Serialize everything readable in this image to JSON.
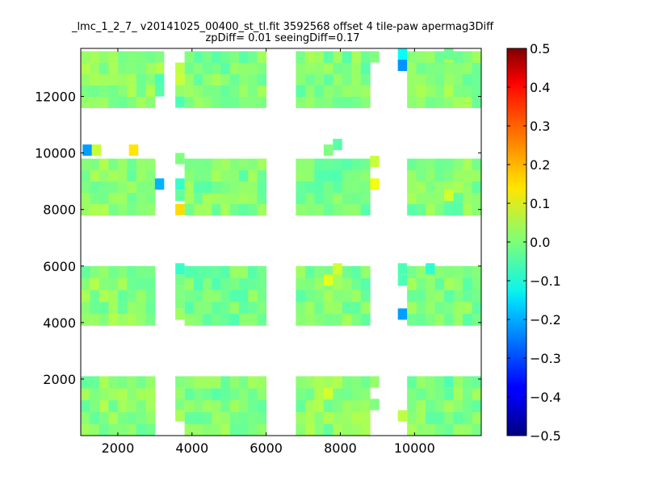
{
  "chart_data": {
    "type": "heatmap",
    "title": "_lmc_1_2_7_ v20141025_00400_st_tl.fit 3592568 offset 4 tile-paw apermag3Diff",
    "subtitle": "zpDiff= 0.01 seeingDiff=0.17",
    "xlabel": "",
    "ylabel": "",
    "xlim": [
      1000,
      11800
    ],
    "ylim": [
      0,
      13700
    ],
    "x_ticks": [
      2000,
      4000,
      6000,
      8000,
      10000
    ],
    "y_ticks": [
      2000,
      4000,
      6000,
      8000,
      10000,
      12000
    ],
    "x_tick_labels": [
      "2000",
      "4000",
      "6000",
      "8000",
      "10000"
    ],
    "y_tick_labels": [
      "2000",
      "4000",
      "6000",
      "8000",
      "10000",
      "12000"
    ],
    "colorbar": {
      "colormap": "jet",
      "vmin": -0.5,
      "vmax": 0.5,
      "ticks": [
        0.5,
        0.4,
        0.3,
        0.2,
        0.1,
        0.0,
        -0.1,
        -0.2,
        -0.3,
        -0.4,
        -0.5
      ],
      "tick_labels": [
        "0.5",
        "0.4",
        "0.3",
        "0.2",
        "0.1",
        "0.0",
        "−0.1",
        "−0.2",
        "−0.3",
        "−0.4",
        "−0.5"
      ]
    },
    "cell_size": [
      250,
      400
    ],
    "detector_blocks": [
      {
        "x": [
          1000,
          3000
        ],
        "y": [
          11600,
          13600
        ],
        "value": 0.01
      },
      {
        "x": [
          3800,
          6000
        ],
        "y": [
          11600,
          13600
        ],
        "value": 0.0
      },
      {
        "x": [
          6800,
          8800
        ],
        "y": [
          11600,
          13600
        ],
        "value": 0.0
      },
      {
        "x": [
          9800,
          11800
        ],
        "y": [
          11600,
          13600
        ],
        "value": 0.01
      },
      {
        "x": [
          1000,
          3000
        ],
        "y": [
          7800,
          9800
        ],
        "value": 0.01
      },
      {
        "x": [
          3800,
          6000
        ],
        "y": [
          7800,
          9800
        ],
        "value": 0.0
      },
      {
        "x": [
          6800,
          8800
        ],
        "y": [
          7800,
          9800
        ],
        "value": -0.01
      },
      {
        "x": [
          9800,
          11800
        ],
        "y": [
          7800,
          9800
        ],
        "value": 0.0
      },
      {
        "x": [
          1000,
          3000
        ],
        "y": [
          3900,
          6000
        ],
        "value": 0.01
      },
      {
        "x": [
          3800,
          6000
        ],
        "y": [
          3900,
          6000
        ],
        "value": -0.01
      },
      {
        "x": [
          6800,
          8800
        ],
        "y": [
          3900,
          6000
        ],
        "value": 0.0
      },
      {
        "x": [
          9800,
          11800
        ],
        "y": [
          3900,
          6000
        ],
        "value": 0.0
      },
      {
        "x": [
          1000,
          3000
        ],
        "y": [
          0,
          2100
        ],
        "value": 0.01
      },
      {
        "x": [
          3800,
          6000
        ],
        "y": [
          0,
          2100
        ],
        "value": 0.0
      },
      {
        "x": [
          6800,
          8800
        ],
        "y": [
          0,
          2100
        ],
        "value": 0.01
      },
      {
        "x": [
          9800,
          11800
        ],
        "y": [
          0,
          2100
        ],
        "value": 0.0
      }
    ],
    "extra_cells": [
      {
        "x": 1050,
        "y": 9900,
        "value": -0.22
      },
      {
        "x": 1300,
        "y": 9900,
        "value": 0.07
      },
      {
        "x": 2300,
        "y": 9900,
        "value": 0.15
      },
      {
        "x": 3000,
        "y": 13200,
        "value": 0.0
      },
      {
        "x": 3000,
        "y": 12800,
        "value": 0.05
      },
      {
        "x": 3000,
        "y": 12400,
        "value": -0.05
      },
      {
        "x": 3000,
        "y": 12000,
        "value": -0.04
      },
      {
        "x": 3000,
        "y": 8700,
        "value": -0.2
      },
      {
        "x": 3550,
        "y": 12800,
        "value": 0.06
      },
      {
        "x": 3550,
        "y": 12400,
        "value": 0.07
      },
      {
        "x": 3550,
        "y": 12000,
        "value": 0.02
      },
      {
        "x": 3550,
        "y": 11600,
        "value": -0.05
      },
      {
        "x": 3550,
        "y": 9600,
        "value": 0.0
      },
      {
        "x": 3550,
        "y": 8700,
        "value": -0.07
      },
      {
        "x": 3550,
        "y": 8300,
        "value": -0.03
      },
      {
        "x": 3550,
        "y": 7800,
        "value": 0.16
      },
      {
        "x": 3550,
        "y": 5700,
        "value": -0.07
      },
      {
        "x": 3550,
        "y": 5300,
        "value": -0.01
      },
      {
        "x": 3550,
        "y": 4900,
        "value": 0.0
      },
      {
        "x": 3550,
        "y": 4500,
        "value": 0.0
      },
      {
        "x": 3550,
        "y": 4100,
        "value": 0.03
      },
      {
        "x": 3550,
        "y": 1700,
        "value": 0.0
      },
      {
        "x": 3550,
        "y": 1300,
        "value": 0.02
      },
      {
        "x": 3550,
        "y": 900,
        "value": 0.0
      },
      {
        "x": 3550,
        "y": 500,
        "value": 0.04
      },
      {
        "x": 8800,
        "y": 9500,
        "value": 0.07
      },
      {
        "x": 8800,
        "y": 8700,
        "value": 0.11
      },
      {
        "x": 8800,
        "y": 13200,
        "value": 0.0
      },
      {
        "x": 8800,
        "y": 1700,
        "value": 0.02
      },
      {
        "x": 8800,
        "y": 900,
        "value": 0.0
      },
      {
        "x": 7800,
        "y": 10100,
        "value": -0.04
      },
      {
        "x": 7550,
        "y": 9900,
        "value": 0.0
      },
      {
        "x": 7550,
        "y": 5300,
        "value": 0.1
      },
      {
        "x": 7800,
        "y": 5700,
        "value": 0.08
      },
      {
        "x": 7550,
        "y": 1300,
        "value": 0.08
      },
      {
        "x": 9550,
        "y": 13300,
        "value": -0.12
      },
      {
        "x": 9550,
        "y": 12900,
        "value": -0.23
      },
      {
        "x": 9550,
        "y": 5700,
        "value": -0.05
      },
      {
        "x": 9550,
        "y": 5300,
        "value": -0.05
      },
      {
        "x": 9550,
        "y": 4100,
        "value": -0.22
      },
      {
        "x": 9550,
        "y": 500,
        "value": 0.06
      },
      {
        "x": 10300,
        "y": 5700,
        "value": -0.08
      },
      {
        "x": 10800,
        "y": 8300,
        "value": 0.08
      },
      {
        "x": 10800,
        "y": 1700,
        "value": -0.05
      },
      {
        "x": 10800,
        "y": 13300,
        "value": -0.02
      }
    ]
  }
}
